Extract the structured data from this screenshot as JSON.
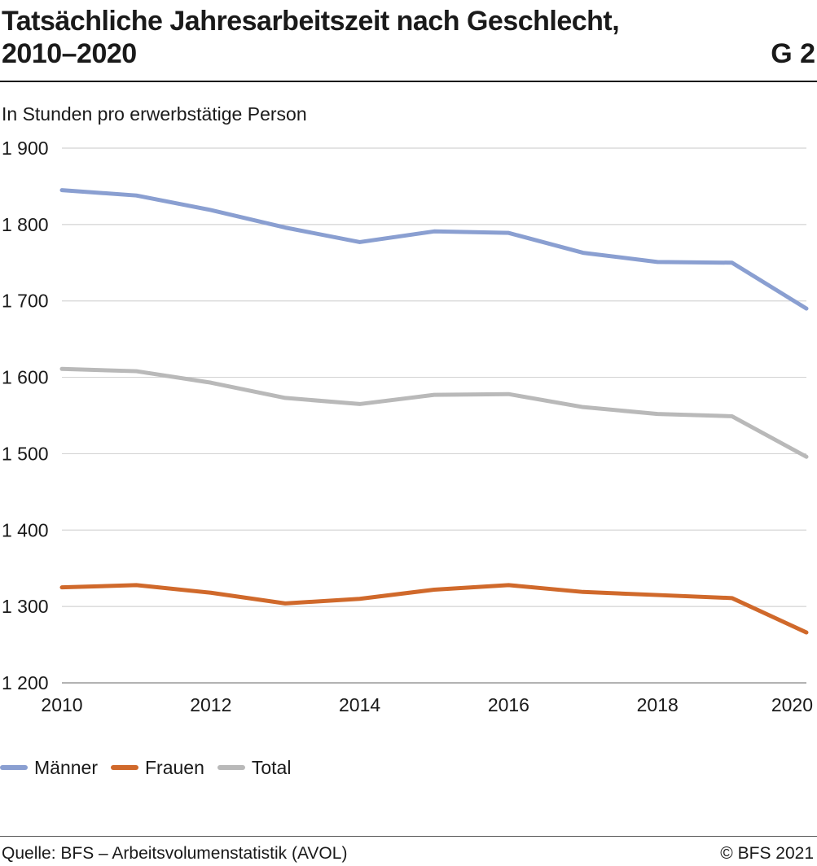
{
  "header": {
    "title_line1": "Tatsächliche Jahresarbeitszeit nach Geschlecht,",
    "title_line2": "2010–2020",
    "figure_id": "G 2"
  },
  "chart_data": {
    "type": "line",
    "ylabel": "In Stunden pro erwerbstätige Person",
    "xlabel": "",
    "x": [
      2010,
      2011,
      2012,
      2013,
      2014,
      2015,
      2016,
      2017,
      2018,
      2019,
      2020
    ],
    "x_ticks": [
      2010,
      2012,
      2014,
      2016,
      2018,
      2020
    ],
    "x_tick_labels": [
      "2010",
      "2012",
      "2014",
      "2016",
      "2018",
      "2020"
    ],
    "ylim": [
      1200,
      1900
    ],
    "y_ticks": [
      1200,
      1300,
      1400,
      1500,
      1600,
      1700,
      1800,
      1900
    ],
    "y_tick_labels": [
      "1 200",
      "1 300",
      "1 400",
      "1 500",
      "1 600",
      "1 700",
      "1 800",
      "1 900"
    ],
    "grid": true,
    "legend_position": "bottom-left",
    "series": [
      {
        "name": "Männer",
        "color": "#8a9fd1",
        "values": [
          1845,
          1838,
          1819,
          1796,
          1777,
          1791,
          1789,
          1763,
          1751,
          1750,
          1690
        ]
      },
      {
        "name": "Frauen",
        "color": "#d0692b",
        "values": [
          1325,
          1328,
          1318,
          1304,
          1310,
          1322,
          1328,
          1319,
          1315,
          1311,
          1266
        ]
      },
      {
        "name": "Total",
        "color": "#b9b9b9",
        "values": [
          1611,
          1608,
          1593,
          1573,
          1565,
          1577,
          1578,
          1561,
          1552,
          1549,
          1496
        ]
      }
    ]
  },
  "legend": {
    "items": [
      {
        "label": "Männer",
        "color": "#8a9fd1"
      },
      {
        "label": "Frauen",
        "color": "#d0692b"
      },
      {
        "label": "Total",
        "color": "#b9b9b9"
      }
    ]
  },
  "footer": {
    "source": "Quelle: BFS – Arbeitsvolumenstatistik (AVOL)",
    "copyright": "© BFS 2021"
  }
}
